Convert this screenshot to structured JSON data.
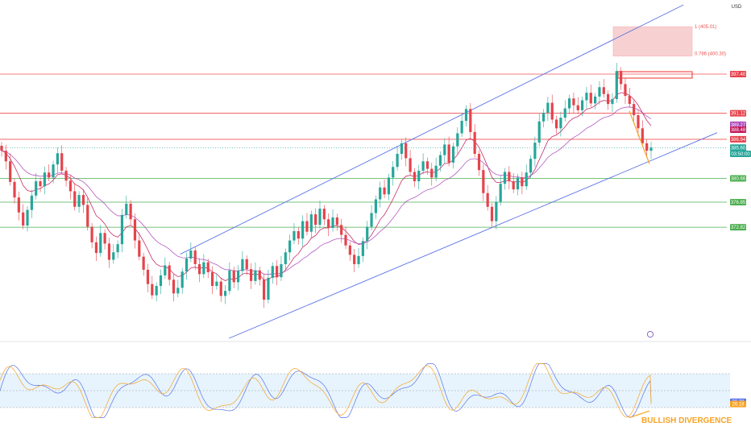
{
  "currency": "USD",
  "colors": {
    "up": "#26a69a",
    "down": "#e5434c",
    "channel": "#5b73e8",
    "resistance": "#ef5350",
    "support": "#4caf50",
    "ma_fast": "#c2185b",
    "ma_slow": "#ab47bc",
    "zone": "#ef9a9a",
    "divergence": "#f7a325",
    "stoch_k": "#5b73e8",
    "stoch_d": "#f7a325",
    "stoch_band": "#e3f2fd"
  },
  "chart_data": [
    {
      "type": "line",
      "panel": "price",
      "yaxis_ticks": [
        {
          "label": "405.01",
          "value": 405.01
        },
        {
          "label": "400.30",
          "value": 400.3
        },
        {
          "label": "397.40",
          "value": 397.4
        },
        {
          "label": "391.12",
          "value": 391.12
        },
        {
          "label": "389.27",
          "value": 389.27
        },
        {
          "label": "388.48",
          "value": 388.48
        },
        {
          "label": "386.94",
          "value": 386.94
        },
        {
          "label": "385.60",
          "value": 385.6
        },
        {
          "label": "380.66",
          "value": 380.66
        },
        {
          "label": "376.85",
          "value": 376.85
        },
        {
          "label": "372.82",
          "value": 372.82
        }
      ],
      "ylim": [
        355,
        408
      ],
      "price_tags": [
        {
          "text": "397.40",
          "value": 397.4,
          "color": "#e5434c"
        },
        {
          "text": "391.12",
          "value": 391.12,
          "color": "#e5434c"
        },
        {
          "text": "389.27",
          "value": 389.27,
          "color": "#ab47bc"
        },
        {
          "text": "388.48",
          "value": 388.48,
          "color": "#c2185b"
        },
        {
          "text": "386.94",
          "value": 386.94,
          "color": "#e5434c"
        },
        {
          "text": "385.60",
          "value": 385.6,
          "color": "#26a69a"
        },
        {
          "text": "03:50:00",
          "value": 384.6,
          "color": "#26a69a"
        },
        {
          "text": "380.66",
          "value": 380.66,
          "color": "#4caf50"
        },
        {
          "text": "376.85",
          "value": 376.85,
          "color": "#4caf50"
        },
        {
          "text": "372.82",
          "value": 372.82,
          "color": "#4caf50"
        }
      ],
      "horizontal_levels": [
        {
          "value": 397.4,
          "kind": "resistance"
        },
        {
          "value": 391.12,
          "kind": "resistance"
        },
        {
          "value": 386.94,
          "kind": "resistance"
        },
        {
          "value": 380.66,
          "kind": "support"
        },
        {
          "value": 376.85,
          "kind": "support"
        },
        {
          "value": 372.82,
          "kind": "support"
        }
      ],
      "fib_zone": {
        "top": 405.01,
        "bottom": 400.3,
        "top_label": "1 (405.01)",
        "bottom_label": "0.786 (400.30)"
      },
      "channel": {
        "upper": [
          [
            0.24,
            368.5
          ],
          [
            0.91,
            408.5
          ]
        ],
        "lower": [
          [
            0.305,
            355.0
          ],
          [
            0.955,
            388.0
          ]
        ]
      },
      "close_series": [
        385.1,
        383.4,
        380.1,
        377.6,
        375.2,
        373.1,
        375.6,
        377.9,
        380.2,
        379.4,
        381.6,
        380.8,
        382.9,
        384.7,
        381.9,
        380.3,
        378.6,
        376.1,
        378.0,
        376.4,
        372.9,
        370.4,
        368.7,
        371.9,
        370.2,
        367.6,
        368.8,
        370.1,
        374.8,
        376.6,
        374.1,
        370.7,
        368.1,
        366.0,
        363.7,
        361.9,
        363.4,
        365.1,
        366.7,
        364.4,
        362.2,
        363.1,
        365.7,
        367.8,
        369.1,
        366.9,
        365.3,
        367.2,
        365.6,
        363.4,
        364.1,
        361.8,
        362.6,
        365.9,
        364.0,
        365.8,
        367.7,
        366.1,
        364.2,
        365.9,
        364.4,
        361.2,
        364.7,
        366.6,
        364.8,
        366.9,
        368.8,
        370.7,
        372.2,
        371.0,
        373.8,
        372.1,
        374.9,
        373.2,
        375.8,
        374.1,
        372.7,
        374.4,
        373.2,
        371.6,
        369.9,
        368.4,
        366.9,
        368.2,
        370.6,
        372.9,
        375.1,
        377.3,
        379.2,
        378.1,
        380.8,
        382.5,
        384.6,
        386.3,
        383.9,
        381.7,
        380.2,
        381.9,
        383.4,
        382.2,
        380.8,
        382.7,
        384.4,
        386.1,
        383.2,
        385.8,
        387.9,
        389.9,
        391.8,
        388.1,
        384.6,
        382.0,
        378.3,
        376.1,
        373.8,
        376.9,
        379.8,
        381.7,
        380.2,
        378.9,
        380.8,
        379.4,
        381.6,
        383.8,
        386.4,
        389.8,
        391.2,
        392.8,
        390.1,
        388.7,
        390.4,
        391.9,
        393.5,
        392.4,
        391.6,
        393.2,
        394.4,
        392.7,
        393.8,
        395.3,
        394.2,
        392.6,
        393.4,
        397.9,
        395.8,
        393.9,
        392.6,
        390.8,
        388.7,
        386.3,
        385.1,
        385.6
      ],
      "stochastic": {
        "upper_band": 80,
        "lower_band": 20,
        "k_value": 30.38,
        "d_value": 26.18,
        "k_label": "30.38",
        "d_label": "26.18"
      },
      "annotations": [
        {
          "text": "BULLISH DIVERGENCE"
        }
      ]
    }
  ]
}
